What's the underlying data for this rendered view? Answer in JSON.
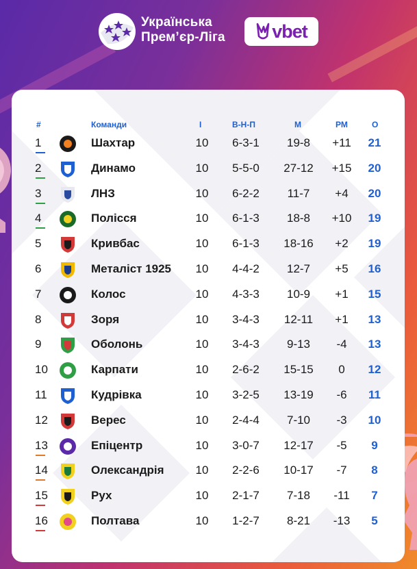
{
  "header": {
    "league_line1": "Українська",
    "league_line2": "Прем’єр-Ліга",
    "sponsor": "vbet"
  },
  "colors": {
    "accent_blue": "#1e5fd1",
    "cl_line": "#1e5fd1",
    "el_line": "#2f9e44",
    "conf_line": "#e07a2a",
    "releg_line": "#d23a3a"
  },
  "table": {
    "headers": {
      "pos": "#",
      "team": "Команди",
      "games": "І",
      "wdl": "В-Н-П",
      "goals": "М",
      "diff": "РМ",
      "points": "О"
    },
    "rows": [
      {
        "pos": "1",
        "team": "Шахтар",
        "games": "10",
        "wdl": "6-3-1",
        "goals": "19-8",
        "diff": "+11",
        "points": "21",
        "zone": "cl",
        "logo_icon": "shakhtar-logo-icon"
      },
      {
        "pos": "2",
        "team": "Динамо",
        "games": "10",
        "wdl": "5-5-0",
        "goals": "27-12",
        "diff": "+15",
        "points": "20",
        "zone": "el",
        "logo_icon": "dynamo-logo-icon"
      },
      {
        "pos": "3",
        "team": "ЛНЗ",
        "games": "10",
        "wdl": "6-2-2",
        "goals": "11-7",
        "diff": "+4",
        "points": "20",
        "zone": "el",
        "logo_icon": "lnz-logo-icon"
      },
      {
        "pos": "4",
        "team": "Полісся",
        "games": "10",
        "wdl": "6-1-3",
        "goals": "18-8",
        "diff": "+10",
        "points": "19",
        "zone": "el",
        "logo_icon": "polissya-logo-icon"
      },
      {
        "pos": "5",
        "team": "Кривбас",
        "games": "10",
        "wdl": "6-1-3",
        "goals": "18-16",
        "diff": "+2",
        "points": "19",
        "zone": "none",
        "logo_icon": "kryvbas-logo-icon"
      },
      {
        "pos": "6",
        "team": "Металіст 1925",
        "games": "10",
        "wdl": "4-4-2",
        "goals": "12-7",
        "diff": "+5",
        "points": "16",
        "zone": "none",
        "logo_icon": "metalist-logo-icon"
      },
      {
        "pos": "7",
        "team": "Колос",
        "games": "10",
        "wdl": "4-3-3",
        "goals": "10-9",
        "diff": "+1",
        "points": "15",
        "zone": "none",
        "logo_icon": "kolos-logo-icon"
      },
      {
        "pos": "8",
        "team": "Зоря",
        "games": "10",
        "wdl": "3-4-3",
        "goals": "12-11",
        "diff": "+1",
        "points": "13",
        "zone": "none",
        "logo_icon": "zorya-logo-icon"
      },
      {
        "pos": "9",
        "team": "Оболонь",
        "games": "10",
        "wdl": "3-4-3",
        "goals": "9-13",
        "diff": "-4",
        "points": "13",
        "zone": "none",
        "logo_icon": "obolon-logo-icon"
      },
      {
        "pos": "10",
        "team": "Карпати",
        "games": "10",
        "wdl": "2-6-2",
        "goals": "15-15",
        "diff": "0",
        "points": "12",
        "zone": "none",
        "logo_icon": "karpaty-logo-icon"
      },
      {
        "pos": "11",
        "team": "Кудрівка",
        "games": "10",
        "wdl": "3-2-5",
        "goals": "13-19",
        "diff": "-6",
        "points": "11",
        "zone": "none",
        "logo_icon": "kudrivka-logo-icon"
      },
      {
        "pos": "12",
        "team": "Верес",
        "games": "10",
        "wdl": "2-4-4",
        "goals": "7-10",
        "diff": "-3",
        "points": "10",
        "zone": "none",
        "logo_icon": "veres-logo-icon"
      },
      {
        "pos": "13",
        "team": "Епіцентр",
        "games": "10",
        "wdl": "3-0-7",
        "goals": "12-17",
        "diff": "-5",
        "points": "9",
        "zone": "conf",
        "logo_icon": "epicentr-logo-icon"
      },
      {
        "pos": "14",
        "team": "Олександрія",
        "games": "10",
        "wdl": "2-2-6",
        "goals": "10-17",
        "diff": "-7",
        "points": "8",
        "zone": "conf",
        "logo_icon": "oleksandriya-logo-icon"
      },
      {
        "pos": "15",
        "team": "Рух",
        "games": "10",
        "wdl": "2-1-7",
        "goals": "7-18",
        "diff": "-11",
        "points": "7",
        "zone": "releg",
        "logo_icon": "rukh-logo-icon"
      },
      {
        "pos": "16",
        "team": "Полтава",
        "games": "10",
        "wdl": "1-2-7",
        "goals": "8-21",
        "diff": "-13",
        "points": "5",
        "zone": "releg",
        "logo_icon": "poltava-logo-icon"
      }
    ]
  }
}
